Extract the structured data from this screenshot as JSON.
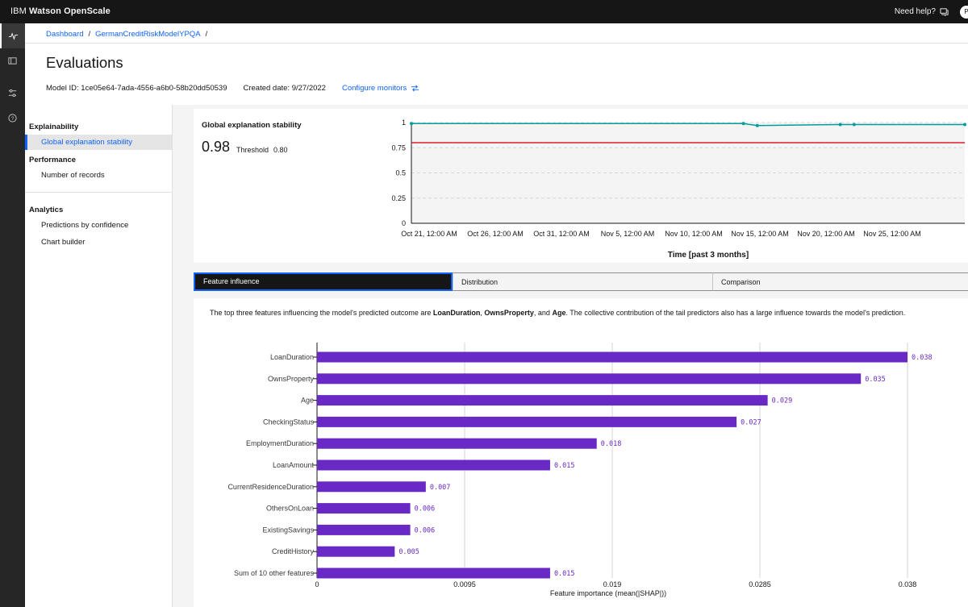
{
  "app": {
    "brand_light": "IBM",
    "brand_bold": "Watson OpenScale",
    "help_label": "Need help?",
    "avatar_initial": "P"
  },
  "breadcrumb": {
    "items": [
      "Dashboard",
      "GermanCreditRiskModelYPQA"
    ],
    "separator": "/"
  },
  "page": {
    "title": "Evaluations",
    "model_id": "Model ID: 1ce05e64-7ada-4556-a6b0-58b20dd50539",
    "created_date": "Created date: 9/27/2022",
    "configure_label": "Configure monitors"
  },
  "sidenav": {
    "sections": [
      {
        "label": "Explainability",
        "items": [
          "Global explanation stability"
        ]
      },
      {
        "label": "Performance",
        "items": [
          "Number of records"
        ]
      },
      {
        "label": "Analytics",
        "items": [
          "Predictions by confidence",
          "Chart builder"
        ]
      }
    ],
    "selected": "Global explanation stability"
  },
  "stability": {
    "title": "Global explanation stability",
    "value": "0.98",
    "threshold_label": "Threshold",
    "threshold_value": "0.80"
  },
  "tabs": [
    "Feature influence",
    "Distribution",
    "Comparison"
  ],
  "feature_description": {
    "prefix": "The top three features influencing the model's predicted outcome are ",
    "f1": "LoanDuration",
    "sep1": ", ",
    "f2": "OwnsProperty",
    "sep2": ", and ",
    "f3": "Age",
    "suffix": ". The collective contribution of the tail predictors also has a large influence towards the model's prediction."
  },
  "colors": {
    "accent": "#0f62fe",
    "bar": "#6929c4",
    "line": "#009d9a",
    "threshold": "#da1e28"
  },
  "chart_data": [
    {
      "type": "line",
      "title": "Global explanation stability",
      "xlabel": "Time [past 3 months]",
      "x_ticks": [
        "Oct 21, 12:00 AM",
        "Oct 26, 12:00 AM",
        "Oct 31, 12:00 AM",
        "Nov 5, 12:00 AM",
        "Nov 10, 12:00 AM",
        "Nov 15, 12:00 AM",
        "Nov 20, 12:00 AM",
        "Nov 25, 12:00 AM"
      ],
      "y_ticks": [
        "0",
        "0.25",
        "0.5",
        "0.75",
        "1"
      ],
      "ylim": [
        0,
        1
      ],
      "xlim_days": [
        0,
        40
      ],
      "series": [
        {
          "name": "Stability",
          "x_days": [
            0,
            24,
            25,
            31,
            32,
            40
          ],
          "values": [
            0.99,
            0.99,
            0.97,
            0.98,
            0.98,
            0.98
          ]
        }
      ],
      "threshold": 0.8
    },
    {
      "type": "bar",
      "orientation": "horizontal",
      "xlabel": "Feature importance (mean(|SHAP|))",
      "categories": [
        "LoanDuration",
        "OwnsProperty",
        "Age",
        "CheckingStatus",
        "EmploymentDuration",
        "LoanAmount",
        "CurrentResidenceDuration",
        "OthersOnLoan",
        "ExistingSavings",
        "CreditHistory",
        "Sum of 10 other features"
      ],
      "values": [
        0.038,
        0.035,
        0.029,
        0.027,
        0.018,
        0.015,
        0.007,
        0.006,
        0.006,
        0.005,
        0.015
      ],
      "value_labels": [
        "0.038",
        "0.035",
        "0.029",
        "0.027",
        "0.018",
        "0.015",
        "0.007",
        "0.006",
        "0.006",
        "0.005",
        "0.015"
      ],
      "x_ticks": [
        "0",
        "0.0095",
        "0.019",
        "0.0285",
        "0.038"
      ],
      "xlim": [
        0,
        0.038
      ]
    }
  ]
}
